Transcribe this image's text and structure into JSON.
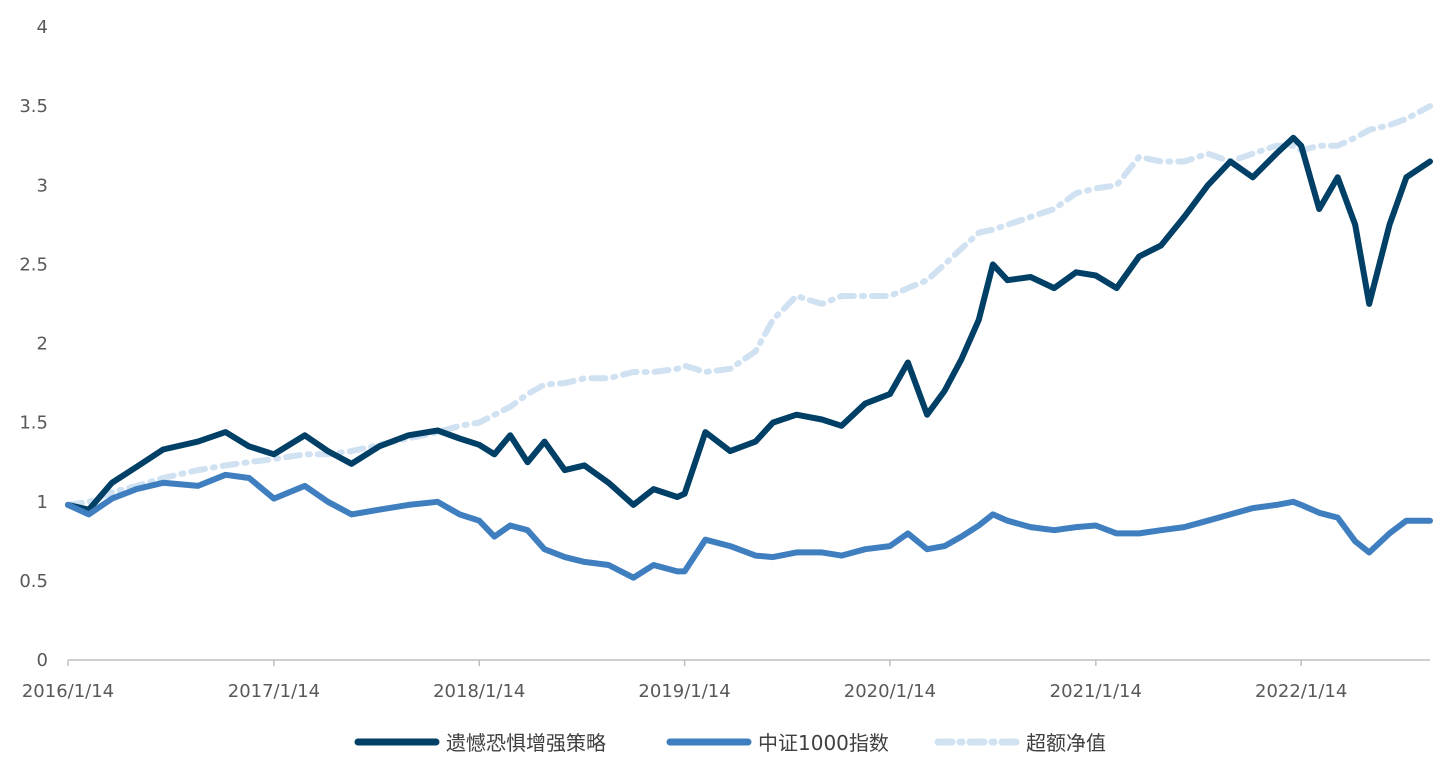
{
  "chart_data": {
    "type": "line",
    "title": "",
    "xlabel": "",
    "ylabel": "",
    "ylim": [
      0,
      4
    ],
    "y_ticks": [
      "0",
      "0.5",
      "1",
      "1.5",
      "2",
      "2.5",
      "3",
      "3.5",
      "4"
    ],
    "x_ticks": [
      "2016/1/14",
      "2017/1/14",
      "2018/1/14",
      "2019/1/14",
      "2020/1/14",
      "2021/1/14",
      "2022/1/14"
    ],
    "x_range": [
      "2016/1/14",
      "2022/8/31"
    ],
    "grid": false,
    "legend_position": "bottom",
    "series": [
      {
        "name": "遗憾恐惧增强策略",
        "color": "#003f66",
        "style": "solid",
        "x": [
          "2016/1/14",
          "2016/2/20",
          "2016/4/1",
          "2016/5/15",
          "2016/7/1",
          "2016/9/1",
          "2016/10/20",
          "2016/12/1",
          "2017/1/14",
          "2017/3/10",
          "2017/4/20",
          "2017/6/1",
          "2017/7/20",
          "2017/9/10",
          "2017/11/1",
          "2017/12/10",
          "2018/1/14",
          "2018/2/10",
          "2018/3/10",
          "2018/4/10",
          "2018/5/10",
          "2018/6/15",
          "2018/7/20",
          "2018/9/1",
          "2018/10/15",
          "2018/11/20",
          "2019/1/1",
          "2019/1/14",
          "2019/2/20",
          "2019/4/5",
          "2019/5/20",
          "2019/6/20",
          "2019/8/1",
          "2019/9/15",
          "2019/10/20",
          "2019/12/1",
          "2020/1/14",
          "2020/2/15",
          "2020/3/20",
          "2020/4/20",
          "2020/5/20",
          "2020/6/20",
          "2020/7/15",
          "2020/8/10",
          "2020/9/20",
          "2020/11/1",
          "2020/12/10",
          "2021/1/14",
          "2021/2/20",
          "2021/4/1",
          "2021/5/10",
          "2021/6/20",
          "2021/8/1",
          "2021/9/10",
          "2021/10/20",
          "2021/12/1",
          "2021/12/31",
          "2022/1/14",
          "2022/2/15",
          "2022/3/20",
          "2022/4/20",
          "2022/5/15",
          "2022/6/20",
          "2022/7/20",
          "2022/8/31"
        ],
        "values": [
          0.98,
          0.95,
          1.12,
          1.22,
          1.33,
          1.38,
          1.44,
          1.35,
          1.3,
          1.42,
          1.32,
          1.24,
          1.35,
          1.42,
          1.45,
          1.4,
          1.36,
          1.3,
          1.42,
          1.25,
          1.38,
          1.2,
          1.23,
          1.12,
          0.98,
          1.08,
          1.03,
          1.05,
          1.44,
          1.32,
          1.38,
          1.5,
          1.55,
          1.52,
          1.48,
          1.62,
          1.68,
          1.88,
          1.55,
          1.7,
          1.9,
          2.15,
          2.5,
          2.4,
          2.42,
          2.35,
          2.45,
          2.43,
          2.35,
          2.55,
          2.62,
          2.8,
          3.0,
          3.15,
          3.05,
          3.2,
          3.3,
          3.25,
          2.85,
          3.05,
          2.75,
          2.25,
          2.75,
          3.05,
          3.15
        ]
      },
      {
        "name": "中证1000指数",
        "color": "#3f7fc0",
        "style": "solid",
        "x": [
          "2016/1/14",
          "2016/2/20",
          "2016/4/1",
          "2016/5/15",
          "2016/7/1",
          "2016/9/1",
          "2016/10/20",
          "2016/12/1",
          "2017/1/14",
          "2017/3/10",
          "2017/4/20",
          "2017/6/1",
          "2017/7/20",
          "2017/9/10",
          "2017/11/1",
          "2017/12/10",
          "2018/1/14",
          "2018/2/10",
          "2018/3/10",
          "2018/4/10",
          "2018/5/10",
          "2018/6/15",
          "2018/7/20",
          "2018/9/1",
          "2018/10/15",
          "2018/11/20",
          "2019/1/1",
          "2019/1/14",
          "2019/2/20",
          "2019/4/5",
          "2019/5/20",
          "2019/6/20",
          "2019/8/1",
          "2019/9/15",
          "2019/10/20",
          "2019/12/1",
          "2020/1/14",
          "2020/2/15",
          "2020/3/20",
          "2020/4/20",
          "2020/5/20",
          "2020/6/20",
          "2020/7/15",
          "2020/8/10",
          "2020/9/20",
          "2020/11/1",
          "2020/12/10",
          "2021/1/14",
          "2021/2/20",
          "2021/4/1",
          "2021/5/10",
          "2021/6/20",
          "2021/8/1",
          "2021/9/10",
          "2021/10/20",
          "2021/12/1",
          "2021/12/31",
          "2022/1/14",
          "2022/2/15",
          "2022/3/20",
          "2022/4/20",
          "2022/5/15",
          "2022/6/20",
          "2022/7/20",
          "2022/8/31"
        ],
        "values": [
          0.98,
          0.92,
          1.02,
          1.08,
          1.12,
          1.1,
          1.17,
          1.15,
          1.02,
          1.1,
          1.0,
          0.92,
          0.95,
          0.98,
          1.0,
          0.92,
          0.88,
          0.78,
          0.85,
          0.82,
          0.7,
          0.65,
          0.62,
          0.6,
          0.52,
          0.6,
          0.56,
          0.56,
          0.76,
          0.72,
          0.66,
          0.65,
          0.68,
          0.68,
          0.66,
          0.7,
          0.72,
          0.8,
          0.7,
          0.72,
          0.78,
          0.85,
          0.92,
          0.88,
          0.84,
          0.82,
          0.84,
          0.85,
          0.8,
          0.8,
          0.82,
          0.84,
          0.88,
          0.92,
          0.96,
          0.98,
          1.0,
          0.98,
          0.93,
          0.9,
          0.75,
          0.68,
          0.8,
          0.88,
          0.88
        ]
      },
      {
        "name": "超额净值",
        "color": "#d0e1f2",
        "style": "dash-dot",
        "x": [
          "2016/1/14",
          "2016/2/20",
          "2016/4/1",
          "2016/5/15",
          "2016/7/1",
          "2016/9/1",
          "2016/10/20",
          "2016/12/1",
          "2017/1/14",
          "2017/3/10",
          "2017/4/20",
          "2017/6/1",
          "2017/7/20",
          "2017/9/10",
          "2017/11/1",
          "2017/12/10",
          "2018/1/14",
          "2018/2/10",
          "2018/3/10",
          "2018/4/10",
          "2018/5/10",
          "2018/6/15",
          "2018/7/20",
          "2018/9/1",
          "2018/10/15",
          "2018/11/20",
          "2019/1/1",
          "2019/1/14",
          "2019/2/20",
          "2019/4/5",
          "2019/5/20",
          "2019/6/20",
          "2019/8/1",
          "2019/9/15",
          "2019/10/20",
          "2019/12/1",
          "2020/1/14",
          "2020/2/15",
          "2020/3/20",
          "2020/4/20",
          "2020/5/20",
          "2020/6/20",
          "2020/7/15",
          "2020/8/10",
          "2020/9/20",
          "2020/11/1",
          "2020/12/10",
          "2021/1/14",
          "2021/2/20",
          "2021/4/1",
          "2021/5/10",
          "2021/6/20",
          "2021/8/1",
          "2021/9/10",
          "2021/10/20",
          "2021/12/1",
          "2021/12/31",
          "2022/1/14",
          "2022/2/15",
          "2022/3/20",
          "2022/4/20",
          "2022/5/15",
          "2022/6/20",
          "2022/7/20",
          "2022/8/31"
        ],
        "values": [
          0.98,
          1.0,
          1.06,
          1.1,
          1.15,
          1.2,
          1.23,
          1.25,
          1.27,
          1.3,
          1.3,
          1.32,
          1.36,
          1.4,
          1.44,
          1.48,
          1.5,
          1.55,
          1.6,
          1.68,
          1.74,
          1.75,
          1.78,
          1.78,
          1.82,
          1.82,
          1.84,
          1.86,
          1.82,
          1.84,
          1.95,
          2.15,
          2.3,
          2.25,
          2.3,
          2.3,
          2.3,
          2.35,
          2.4,
          2.5,
          2.6,
          2.7,
          2.72,
          2.75,
          2.8,
          2.85,
          2.95,
          2.98,
          3.0,
          3.18,
          3.15,
          3.15,
          3.2,
          3.15,
          3.2,
          3.25,
          3.25,
          3.22,
          3.25,
          3.25,
          3.3,
          3.35,
          3.38,
          3.42,
          3.5
        ]
      }
    ]
  }
}
